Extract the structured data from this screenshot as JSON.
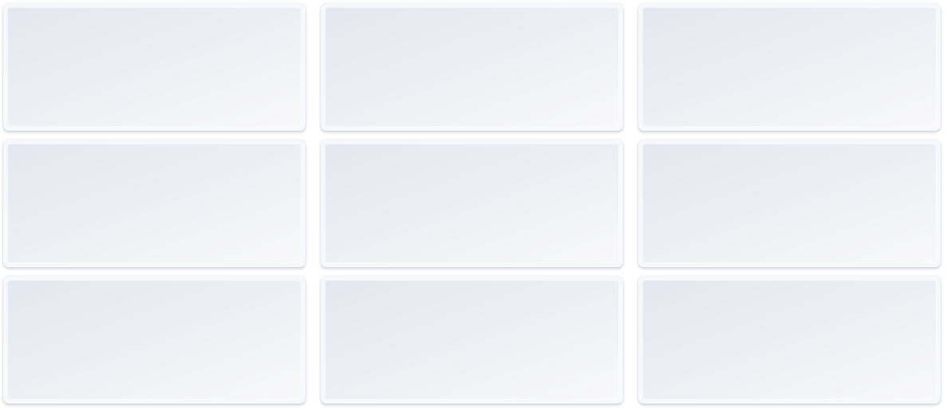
{
  "cards": [
    {
      "id": "card-1"
    },
    {
      "id": "card-2"
    },
    {
      "id": "card-3"
    },
    {
      "id": "card-4"
    },
    {
      "id": "card-5"
    },
    {
      "id": "card-6"
    },
    {
      "id": "card-7"
    },
    {
      "id": "card-8"
    },
    {
      "id": "card-9"
    }
  ],
  "colors": {
    "background": "#ffffff",
    "card_frame": "#f7f8fb",
    "card_gradient_start": "#e4e7ef",
    "card_gradient_end": "#f8f8fa"
  }
}
